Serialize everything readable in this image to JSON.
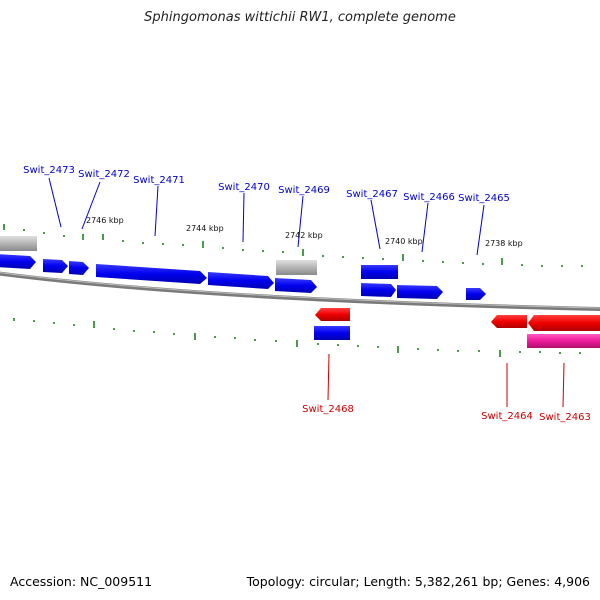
{
  "title": "Sphingomonas wittichii RW1, complete genome",
  "footer": {
    "accession": "Accession: NC_009511",
    "stats": "Topology: circular; Length: 5,382,261 bp; Genes: 4,906"
  },
  "scale_labels": [
    "2746 kbp",
    "2744 kbp",
    "2742 kbp",
    "2740 kbp",
    "2738 kbp"
  ],
  "forward_gene_labels": [
    "Swit_2473",
    "Swit_2472",
    "Swit_2471",
    "Swit_2470",
    "Swit_2469",
    "Swit_2467",
    "Swit_2466",
    "Swit_2465"
  ],
  "reverse_gene_labels": [
    "Swit_2468",
    "Swit_2464",
    "Swit_2463"
  ],
  "colors": {
    "forward_gene": "#0000ee",
    "reverse_gene": "#ee0000",
    "gray_feature": "#b4b4b4",
    "pink_feature": "#ee1a9a",
    "backbone": "#808080",
    "ticks": "#117711",
    "forward_label": "#0000cc",
    "reverse_label": "#cc0000"
  }
}
